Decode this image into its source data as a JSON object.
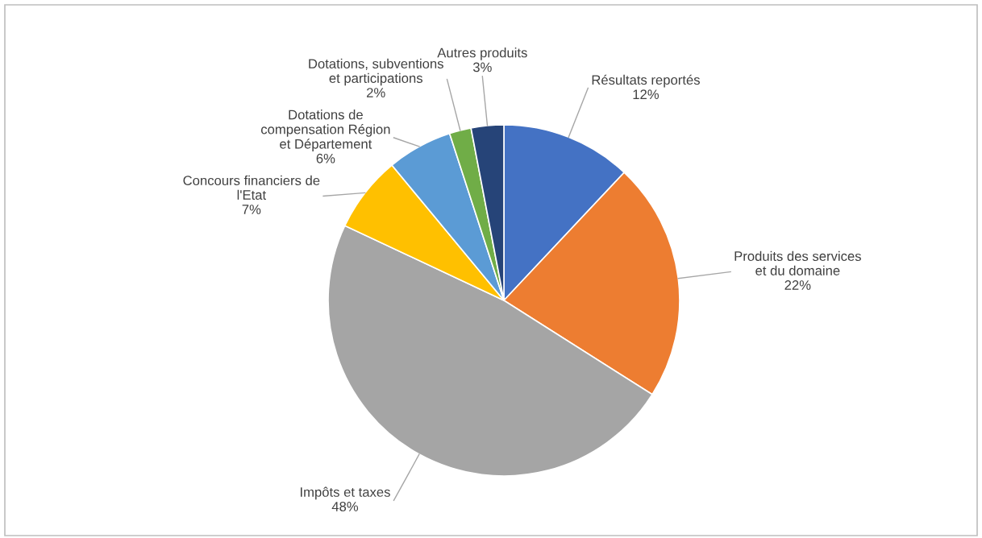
{
  "chart_data": {
    "type": "pie",
    "categories": [
      "Résultats reportés",
      "Produits des services\net du domaine",
      "Impôts et taxes",
      "Concours financiers de\nl'Etat",
      "Dotations de\ncompensation Région\net Département",
      "Dotations, subventions\net participations",
      "Autres produits"
    ],
    "values": [
      12,
      22,
      48,
      7,
      6,
      2,
      3
    ],
    "value_labels": [
      "12%",
      "22%",
      "48%",
      "7%",
      "6%",
      "2%",
      "3%"
    ],
    "colors": [
      "#4472c4",
      "#ed7d31",
      "#a5a5a5",
      "#ffc000",
      "#5b9bd5",
      "#70ad47",
      "#264478"
    ]
  }
}
